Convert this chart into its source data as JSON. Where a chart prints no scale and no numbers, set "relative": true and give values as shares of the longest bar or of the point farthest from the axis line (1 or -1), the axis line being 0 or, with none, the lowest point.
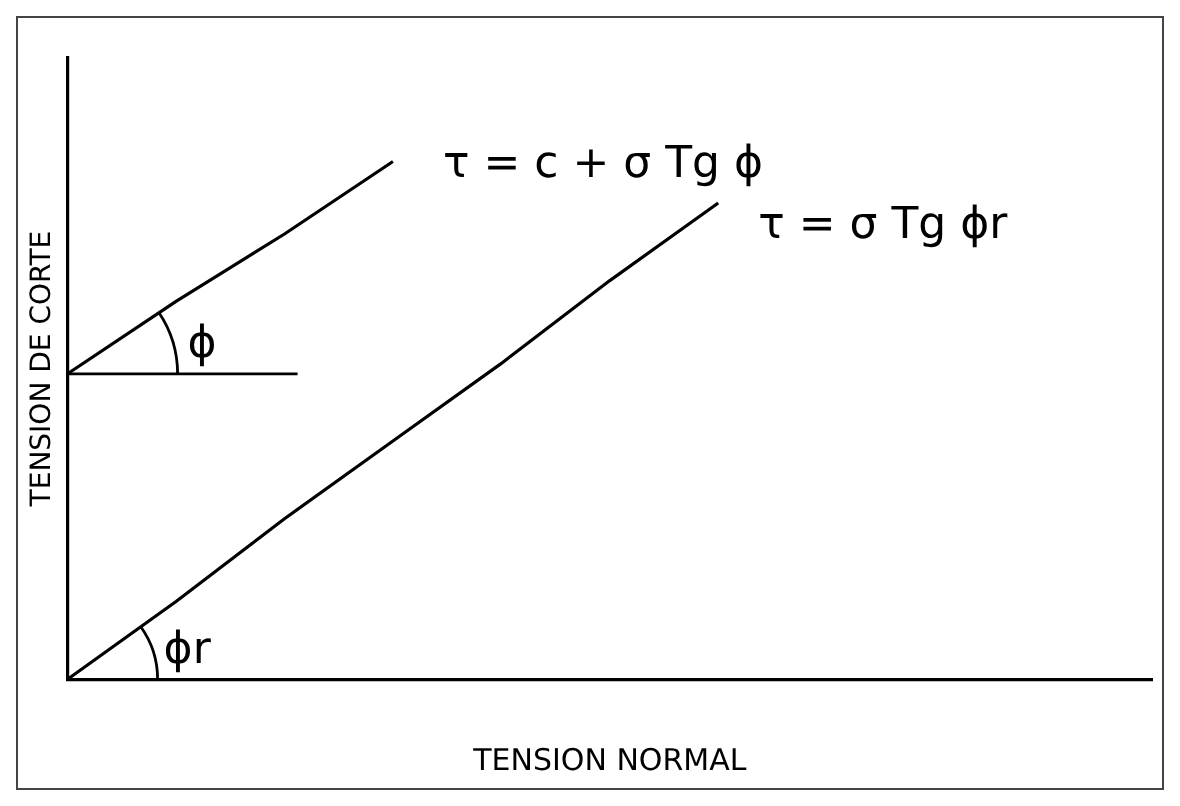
{
  "chart_data": {
    "type": "line",
    "relative": true,
    "xlabel": "TENSION NORMAL",
    "ylabel": "TENSION DE CORTE",
    "categories": [
      null,
      null,
      null,
      null,
      null,
      null,
      null,
      null,
      null,
      null,
      null
    ],
    "series": [
      {
        "color": "#000000",
        "values": [
          0.59,
          0.73,
          0.86,
          1,
          null,
          null,
          null,
          null,
          null,
          null,
          null
        ]
      },
      {
        "color": "#000000",
        "values": [
          0,
          0.15,
          0.31,
          0.46,
          0.61,
          0.77,
          0.92,
          null,
          null,
          null,
          null
        ]
      }
    ],
    "annotations": [
      "τ = c + σ Tg ϕ",
      "τ = σ Tg ϕr",
      "ϕ",
      "ϕr"
    ],
    "grid": false,
    "legend": false,
    "marker": "none",
    "line_style": "solid"
  }
}
